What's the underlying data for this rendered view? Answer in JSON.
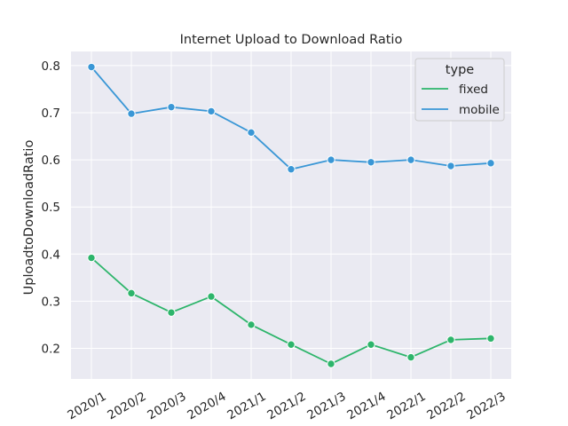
{
  "chart_data": {
    "type": "line",
    "title": "Internet Upload to Download Ratio",
    "xlabel": "",
    "ylabel": "UploadtoDownloadRatio",
    "categories": [
      "2020/1",
      "2020/2",
      "2020/3",
      "2020/4",
      "2021/1",
      "2021/2",
      "2021/3",
      "2021/4",
      "2022/1",
      "2022/2",
      "2022/3"
    ],
    "ylim": [
      0.135,
      0.83
    ],
    "yticks": [
      0.2,
      0.3,
      0.4,
      0.5,
      0.6,
      0.7,
      0.8
    ],
    "ytick_labels": [
      "0.2",
      "0.3",
      "0.4",
      "0.5",
      "0.6",
      "0.7",
      "0.8"
    ],
    "grid": true,
    "legend": {
      "title": "type",
      "placement": "top-right"
    },
    "series": [
      {
        "name": "fixed",
        "color": "#2db56b",
        "values": [
          0.392,
          0.317,
          0.276,
          0.31,
          0.25,
          0.208,
          0.167,
          0.208,
          0.181,
          0.218,
          0.221
        ]
      },
      {
        "name": "mobile",
        "color": "#3a97d6",
        "values": [
          0.797,
          0.698,
          0.712,
          0.703,
          0.658,
          0.58,
          0.6,
          0.595,
          0.6,
          0.587,
          0.593
        ]
      }
    ]
  }
}
